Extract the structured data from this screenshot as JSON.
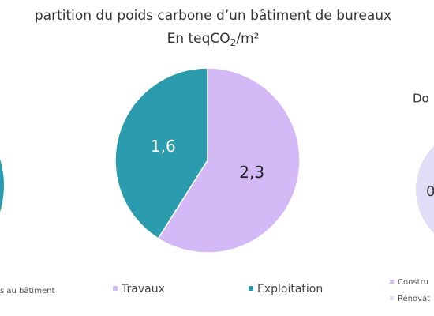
{
  "chart_data": {
    "type": "pie",
    "title": "partition du poids carbone d’un bâtiment de bureaux",
    "subtitle": [
      "En teqCO",
      "2",
      "/m²"
    ],
    "categories": [
      "Travaux",
      "Exploitation"
    ],
    "values": [
      2.3,
      1.6
    ],
    "value_labels": [
      "2,3",
      "1,6"
    ],
    "colors": [
      "#d3b9f6",
      "#2a9cad"
    ]
  },
  "left_fragment": {
    "legend": "s au bâtiment",
    "color": "#2a9cad"
  },
  "right_fragment": {
    "title": "Do",
    "label": "0",
    "legend": [
      "Constru",
      "Rénovat"
    ],
    "colors": [
      "#d3b9f6",
      "#e2dcf7"
    ]
  }
}
